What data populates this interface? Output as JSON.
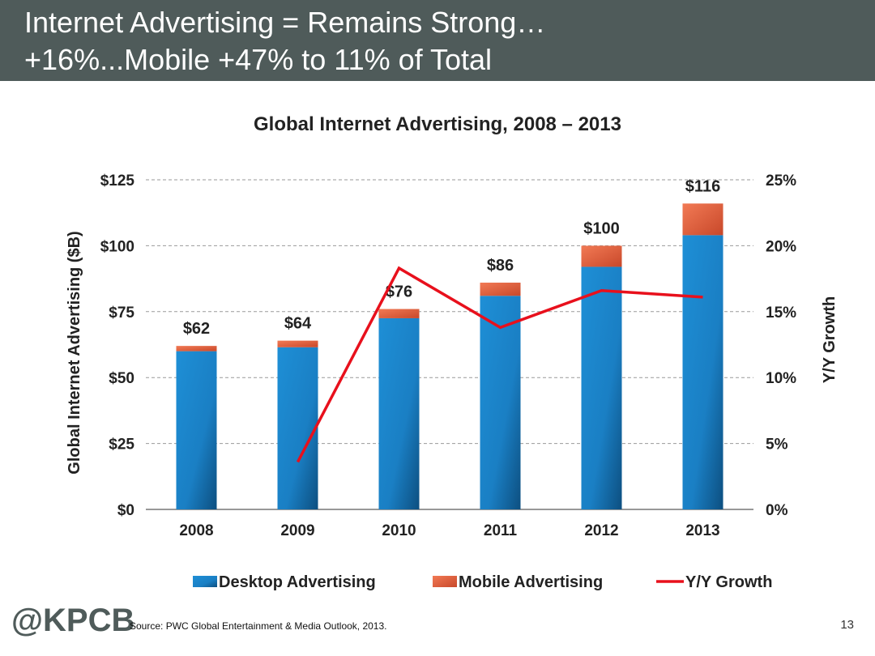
{
  "slide": {
    "title_line1": "Internet Advertising = Remains Strong…",
    "title_line2": "+16%...Mobile +47% to 11% of Total",
    "logo": "@KPCB",
    "source": "Source: PWC Global Entertainment & Media Outlook, 2013.",
    "page_number": "13"
  },
  "colors": {
    "header_bg": "#4f5b5a",
    "desktop": "#1a7fc4",
    "mobile": "#e8603a",
    "growth_line": "#e8101c"
  },
  "chart_data": {
    "type": "bar",
    "stacked": true,
    "title": "Global Internet Advertising, 2008 – 2013",
    "ylabel": "Global Internet Advertising ($B)",
    "y2label": "Y/Y Growth",
    "categories": [
      "2008",
      "2009",
      "2010",
      "2011",
      "2012",
      "2013"
    ],
    "ylim": [
      0,
      125
    ],
    "yticks": [
      0,
      25,
      50,
      75,
      100,
      125
    ],
    "ytick_labels": [
      "$0",
      "$25",
      "$50",
      "$75",
      "$100",
      "$125"
    ],
    "y2lim": [
      0,
      25
    ],
    "y2ticks": [
      0,
      5,
      10,
      15,
      20,
      25
    ],
    "y2tick_labels": [
      "0%",
      "5%",
      "10%",
      "15%",
      "20%",
      "25%"
    ],
    "series": [
      {
        "name": "Desktop Advertising",
        "values": [
          60,
          61.5,
          72.5,
          81,
          92,
          104
        ]
      },
      {
        "name": "Mobile Advertising",
        "values": [
          2,
          2.5,
          3.5,
          5,
          8,
          12
        ]
      }
    ],
    "line_series": {
      "name": "Y/Y Growth",
      "axis": "right",
      "values": [
        null,
        3.6,
        18.3,
        13.8,
        16.6,
        16.1
      ]
    },
    "total_labels": [
      "$62",
      "$64",
      "$76",
      "$86",
      "$100",
      "$116"
    ],
    "grid": true,
    "legend_position": "bottom"
  }
}
